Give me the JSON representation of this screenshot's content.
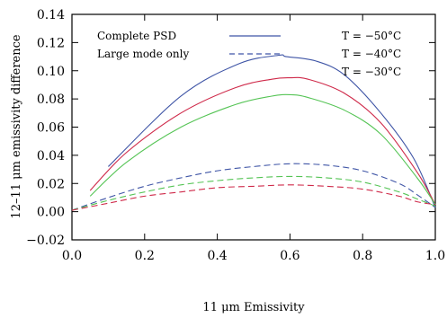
{
  "chart_data": {
    "type": "line",
    "xlabel": "11 μm Emissivity",
    "ylabel": "12–11 μm emissivity difference",
    "xlim": [
      0.0,
      1.0
    ],
    "ylim": [
      -0.02,
      0.14
    ],
    "xticks": [
      "0.0",
      "0.2",
      "0.4",
      "0.6",
      "0.8",
      "1.0"
    ],
    "yticks": [
      "−0.02",
      "0.00",
      "0.02",
      "0.04",
      "0.06",
      "0.08",
      "0.10",
      "0.12",
      "0.14"
    ],
    "legend": {
      "placement": "top-left",
      "entries": [
        {
          "label": "Complete PSD",
          "style": "solid"
        },
        {
          "label": "Large mode only",
          "style": "dashed"
        }
      ]
    },
    "temperature_labels": [
      {
        "label": "T = −50°C",
        "color": "#3f55a6"
      },
      {
        "label": "T = −40°C",
        "color": "#55c455"
      },
      {
        "label": "T = −30°C",
        "color": "#cf2a4a"
      }
    ],
    "series": [
      {
        "linestyle": "solid",
        "color": "#3f55a6",
        "x": [
          0.1,
          0.3,
          0.46,
          0.57,
          0.59,
          0.67,
          0.75,
          0.85,
          0.94,
          1.0
        ],
        "y": [
          0.032,
          0.082,
          0.105,
          0.111,
          0.11,
          0.107,
          0.097,
          0.07,
          0.038,
          0.003
        ]
      },
      {
        "linestyle": "solid",
        "color": "#cf2a4a",
        "x": [
          0.05,
          0.15,
          0.3,
          0.45,
          0.55,
          0.6,
          0.65,
          0.75,
          0.85,
          0.95,
          1.0
        ],
        "y": [
          0.015,
          0.042,
          0.07,
          0.088,
          0.094,
          0.095,
          0.094,
          0.084,
          0.063,
          0.028,
          0.005
        ]
      },
      {
        "linestyle": "solid",
        "color": "#55c455",
        "x": [
          0.05,
          0.15,
          0.3,
          0.45,
          0.55,
          0.6,
          0.65,
          0.75,
          0.85,
          0.95,
          1.0
        ],
        "y": [
          0.011,
          0.035,
          0.06,
          0.076,
          0.082,
          0.083,
          0.081,
          0.072,
          0.055,
          0.024,
          0.005
        ]
      },
      {
        "linestyle": "dashed",
        "color": "#3f55a6",
        "x": [
          0.0,
          0.1,
          0.2,
          0.3,
          0.4,
          0.5,
          0.6,
          0.7,
          0.8,
          0.9,
          0.95,
          1.0
        ],
        "y": [
          0.001,
          0.01,
          0.018,
          0.024,
          0.029,
          0.032,
          0.034,
          0.033,
          0.029,
          0.02,
          0.012,
          0.003
        ]
      },
      {
        "linestyle": "dashed",
        "color": "#55c455",
        "x": [
          0.0,
          0.1,
          0.2,
          0.3,
          0.4,
          0.5,
          0.6,
          0.7,
          0.8,
          0.9,
          0.95,
          1.0
        ],
        "y": [
          0.001,
          0.008,
          0.014,
          0.019,
          0.022,
          0.024,
          0.025,
          0.024,
          0.021,
          0.014,
          0.009,
          0.004
        ]
      },
      {
        "linestyle": "dashed",
        "color": "#cf2a4a",
        "x": [
          0.0,
          0.1,
          0.2,
          0.3,
          0.4,
          0.5,
          0.6,
          0.7,
          0.8,
          0.9,
          0.95,
          1.0
        ],
        "y": [
          0.001,
          0.006,
          0.011,
          0.014,
          0.017,
          0.018,
          0.019,
          0.018,
          0.016,
          0.011,
          0.007,
          0.005
        ]
      }
    ]
  }
}
